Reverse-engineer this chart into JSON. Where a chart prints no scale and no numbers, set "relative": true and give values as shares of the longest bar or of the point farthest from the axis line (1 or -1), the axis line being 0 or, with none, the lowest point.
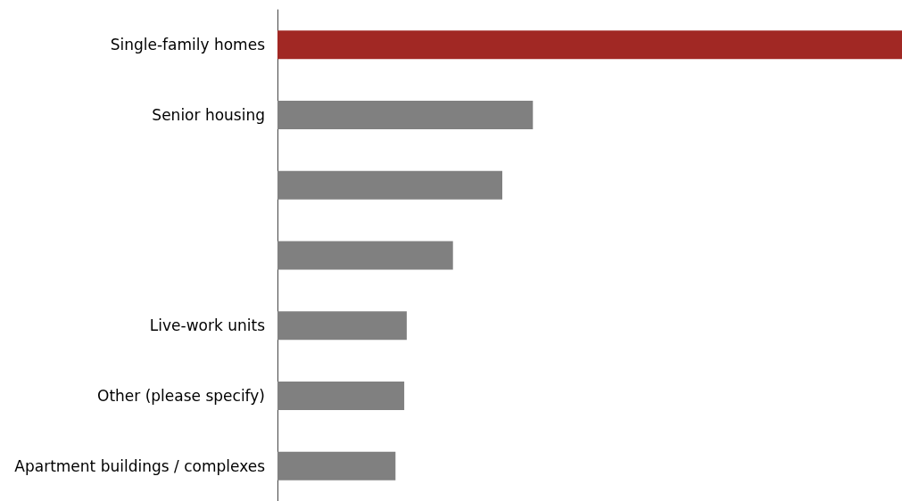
{
  "chart_data": {
    "type": "bar",
    "orientation": "horizontal",
    "relative": true,
    "categories": [
      "Single-family homes",
      "Senior housing",
      null,
      null,
      "Live-work units",
      "Other (please specify)",
      "Apartment buildings / complexes"
    ],
    "values": [
      1,
      0.409,
      0.36,
      0.281,
      0.207,
      0.203,
      0.189
    ],
    "colors": [
      "#a12824",
      "#808080",
      "#808080",
      "#808080",
      "#808080",
      "#808080",
      "#808080"
    ]
  }
}
